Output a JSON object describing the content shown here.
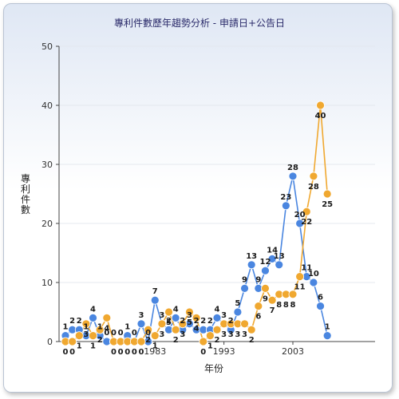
{
  "chart_data": {
    "type": "line",
    "title": "專利件數歷年趨勢分析 - 申請日+公告日",
    "xlabel": "年份",
    "ylabel": "專利件數",
    "ylim": [
      0,
      50
    ],
    "yticks": [
      0,
      10,
      20,
      30,
      40,
      50
    ],
    "xtick_labels": [
      {
        "year": 1983,
        "label": "1983"
      },
      {
        "year": 1993,
        "label": "1993"
      },
      {
        "year": 2003,
        "label": "2003"
      }
    ],
    "x": [
      1970,
      1971,
      1972,
      1973,
      1974,
      1975,
      1976,
      1977,
      1978,
      1979,
      1980,
      1981,
      1982,
      1983,
      1984,
      1985,
      1986,
      1987,
      1988,
      1989,
      1990,
      1991,
      1992,
      1993,
      1994,
      1995,
      1996,
      1997,
      1998,
      1999,
      2000,
      2001,
      2002,
      2003,
      2004,
      2005,
      2006,
      2007,
      2008,
      2009,
      2010,
      2011,
      2012,
      2013,
      2014
    ],
    "series": [
      {
        "name": "",
        "color": "#4a86e0",
        "values": [
          1,
          2,
          2,
          1,
          4,
          1,
          0,
          0,
          0,
          1,
          0,
          3,
          0,
          7,
          3,
          2,
          4,
          2,
          3,
          2,
          2,
          2,
          4,
          3,
          2,
          5,
          9,
          13,
          9,
          12,
          14,
          13,
          23,
          28,
          20,
          11,
          10,
          6,
          1,
          null,
          null,
          null,
          null,
          null,
          null
        ]
      },
      {
        "name": "",
        "color": "#f0a830",
        "values": [
          0,
          0,
          1,
          3,
          1,
          2,
          4,
          0,
          0,
          0,
          0,
          0,
          2,
          1,
          3,
          5,
          2,
          3,
          5,
          4,
          0,
          1,
          2,
          3,
          3,
          3,
          3,
          2,
          6,
          9,
          7,
          8,
          8,
          8,
          11,
          22,
          28,
          40,
          25,
          null,
          null,
          null,
          null,
          null,
          null
        ]
      }
    ]
  }
}
